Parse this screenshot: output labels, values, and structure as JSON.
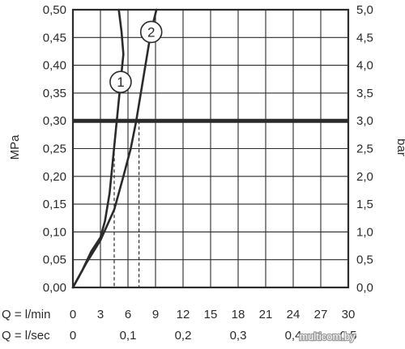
{
  "chart_data": {
    "type": "line",
    "ylabel_left": "MPa",
    "ylabel_right": "bar",
    "x_axis": {
      "label": "Q = l/min",
      "range": [
        0,
        30
      ],
      "ticks": [
        "0",
        "3",
        "6",
        "9",
        "12",
        "15",
        "18",
        "21",
        "24",
        "27",
        "30"
      ]
    },
    "x2_axis": {
      "label": "Q = l/sec",
      "ticks": [
        {
          "value": 0,
          "text": "0"
        },
        {
          "value": 0.1,
          "text": "0,1"
        },
        {
          "value": 0.2,
          "text": "0,2"
        },
        {
          "value": 0.3,
          "text": "0,3"
        },
        {
          "value": 0.4,
          "text": "0,4"
        },
        {
          "value": 0.5,
          "text": "0,5"
        }
      ]
    },
    "y_axis_left": {
      "range": [
        0,
        0.5
      ],
      "ticks": [
        "0,00",
        "0,05",
        "0,10",
        "0,15",
        "0,20",
        "0,25",
        "0,30",
        "0,35",
        "0,40",
        "0,45",
        "0,50"
      ]
    },
    "y_axis_right": {
      "range": [
        0,
        5
      ],
      "ticks": [
        "0,0",
        "0,5",
        "1,0",
        "1,5",
        "2,0",
        "2,5",
        "3,0",
        "3,5",
        "4,0",
        "4,5",
        "5,0"
      ]
    },
    "grid": true,
    "reference_line": {
      "y": 0.3
    },
    "series": [
      {
        "name": "1",
        "x": [
          0,
          1.0,
          2.0,
          3.0,
          3.5,
          4.0,
          4.3,
          4.6,
          4.9,
          5.2,
          5.5,
          5.3,
          5.0
        ],
        "y": [
          0,
          0.03,
          0.065,
          0.09,
          0.12,
          0.17,
          0.22,
          0.27,
          0.32,
          0.37,
          0.42,
          0.46,
          0.5
        ]
      },
      {
        "name": "2",
        "x": [
          0,
          1.5,
          3.0,
          4.5,
          5.5,
          6.3,
          6.9,
          7.4,
          7.9,
          8.4,
          8.8,
          9.1
        ],
        "y": [
          0,
          0.045,
          0.085,
          0.14,
          0.2,
          0.25,
          0.3,
          0.35,
          0.4,
          0.45,
          0.48,
          0.5
        ]
      }
    ],
    "markers": [
      {
        "series": "1",
        "x": 4.5
      },
      {
        "series": "2",
        "x": 7.2
      }
    ]
  },
  "watermark": "multicom.by"
}
